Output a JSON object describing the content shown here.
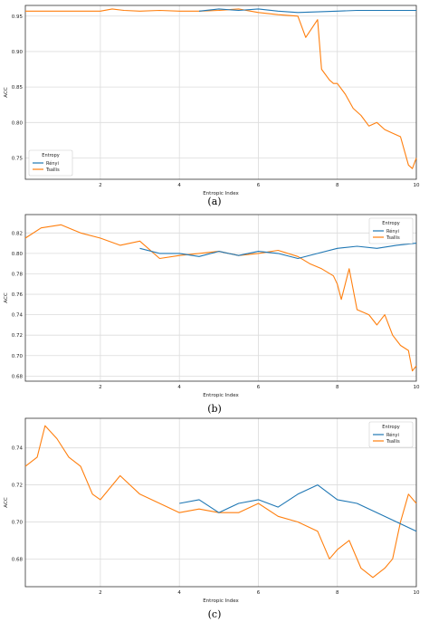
{
  "chart_data": [
    {
      "type": "line",
      "caption": "(a)",
      "xlabel": "Entropic Index",
      "ylabel": "ACC",
      "xlim": [
        0.1,
        10
      ],
      "ylim": [
        0.72,
        0.965
      ],
      "xticks": [
        2,
        4,
        6,
        8,
        10
      ],
      "yticks": [
        0.75,
        0.8,
        0.85,
        0.9,
        0.95
      ],
      "ytick_labels": [
        "0.75",
        "0.80",
        "0.85",
        "0.90",
        "0.95"
      ],
      "grid": true,
      "legend_title": "Entropy",
      "legend_position": "bottom-left",
      "series": [
        {
          "name": "Rényi",
          "color": "#1f77b4",
          "x": [
            4.5,
            5.0,
            5.5,
            6.0,
            6.5,
            7.0,
            7.5,
            8.0,
            8.5,
            9.0,
            9.5,
            10.0
          ],
          "y": [
            0.957,
            0.96,
            0.958,
            0.96,
            0.957,
            0.955,
            0.956,
            0.957,
            0.958,
            0.958,
            0.958,
            0.958
          ]
        },
        {
          "name": "Tsallis",
          "color": "#ff7f0e",
          "x": [
            0.1,
            1.0,
            2.0,
            2.3,
            2.6,
            3.0,
            3.5,
            4.0,
            4.5,
            5.0,
            5.5,
            6.0,
            6.5,
            7.0,
            7.2,
            7.5,
            7.6,
            7.8,
            7.9,
            8.0,
            8.2,
            8.4,
            8.6,
            8.8,
            9.0,
            9.2,
            9.4,
            9.6,
            9.8,
            9.9,
            10.0
          ],
          "y": [
            0.957,
            0.957,
            0.957,
            0.96,
            0.958,
            0.957,
            0.958,
            0.957,
            0.957,
            0.958,
            0.96,
            0.955,
            0.952,
            0.95,
            0.92,
            0.945,
            0.875,
            0.86,
            0.855,
            0.855,
            0.84,
            0.82,
            0.81,
            0.795,
            0.8,
            0.79,
            0.785,
            0.78,
            0.74,
            0.735,
            0.75
          ]
        }
      ]
    },
    {
      "type": "line",
      "caption": "(b)",
      "xlabel": "Entropic Index",
      "ylabel": "ACC",
      "xlim": [
        0.1,
        10
      ],
      "ylim": [
        0.675,
        0.838
      ],
      "xticks": [
        2,
        4,
        6,
        8,
        10
      ],
      "yticks": [
        0.68,
        0.7,
        0.72,
        0.74,
        0.76,
        0.78,
        0.8,
        0.82
      ],
      "ytick_labels": [
        "0.68",
        "0.70",
        "0.72",
        "0.74",
        "0.76",
        "0.78",
        "0.80",
        "0.82"
      ],
      "grid": true,
      "legend_title": "Entropy",
      "legend_position": "top-right",
      "series": [
        {
          "name": "Rényi",
          "color": "#1f77b4",
          "x": [
            3.0,
            3.5,
            4.0,
            4.5,
            5.0,
            5.5,
            6.0,
            6.5,
            7.0,
            7.5,
            8.0,
            8.5,
            9.0,
            9.5,
            10.0
          ],
          "y": [
            0.805,
            0.8,
            0.8,
            0.797,
            0.802,
            0.798,
            0.802,
            0.8,
            0.795,
            0.8,
            0.805,
            0.807,
            0.805,
            0.808,
            0.81
          ]
        },
        {
          "name": "Tsallis",
          "color": "#ff7f0e",
          "x": [
            0.1,
            0.5,
            1.0,
            1.5,
            2.0,
            2.5,
            3.0,
            3.5,
            4.0,
            4.5,
            5.0,
            5.5,
            6.0,
            6.5,
            7.0,
            7.3,
            7.6,
            7.9,
            8.0,
            8.1,
            8.3,
            8.5,
            8.8,
            9.0,
            9.2,
            9.4,
            9.6,
            9.8,
            9.9,
            10.0
          ],
          "y": [
            0.815,
            0.825,
            0.828,
            0.82,
            0.815,
            0.808,
            0.812,
            0.795,
            0.798,
            0.8,
            0.802,
            0.798,
            0.8,
            0.803,
            0.797,
            0.79,
            0.785,
            0.778,
            0.77,
            0.755,
            0.785,
            0.745,
            0.74,
            0.73,
            0.74,
            0.72,
            0.71,
            0.705,
            0.685,
            0.69
          ]
        }
      ]
    },
    {
      "type": "line",
      "caption": "(c)",
      "xlabel": "Entropic Index",
      "ylabel": "ACC",
      "xlim": [
        0.1,
        10
      ],
      "ylim": [
        0.665,
        0.756
      ],
      "xticks": [
        2,
        4,
        6,
        8,
        10
      ],
      "yticks": [
        0.68,
        0.7,
        0.72,
        0.74
      ],
      "ytick_labels": [
        "0.68",
        "0.70",
        "0.72",
        "0.74"
      ],
      "grid": true,
      "legend_title": "Entropy",
      "legend_position": "top-right",
      "series": [
        {
          "name": "Rényi",
          "color": "#1f77b4",
          "x": [
            4.0,
            4.5,
            5.0,
            5.5,
            6.0,
            6.5,
            7.0,
            7.5,
            8.0,
            8.5,
            9.0,
            9.5,
            10.0
          ],
          "y": [
            0.71,
            0.712,
            0.705,
            0.71,
            0.712,
            0.708,
            0.715,
            0.72,
            0.712,
            0.71,
            0.705,
            0.7,
            0.695
          ]
        },
        {
          "name": "Tsallis",
          "color": "#ff7f0e",
          "x": [
            0.1,
            0.4,
            0.6,
            0.9,
            1.2,
            1.5,
            1.8,
            2.0,
            2.5,
            3.0,
            3.5,
            4.0,
            4.5,
            5.0,
            5.5,
            6.0,
            6.5,
            7.0,
            7.5,
            7.8,
            8.0,
            8.3,
            8.6,
            8.9,
            9.2,
            9.4,
            9.6,
            9.8,
            10.0
          ],
          "y": [
            0.73,
            0.735,
            0.752,
            0.745,
            0.735,
            0.73,
            0.715,
            0.712,
            0.725,
            0.715,
            0.71,
            0.705,
            0.707,
            0.705,
            0.705,
            0.71,
            0.703,
            0.7,
            0.695,
            0.68,
            0.685,
            0.69,
            0.675,
            0.67,
            0.675,
            0.68,
            0.7,
            0.715,
            0.71
          ]
        }
      ]
    }
  ]
}
